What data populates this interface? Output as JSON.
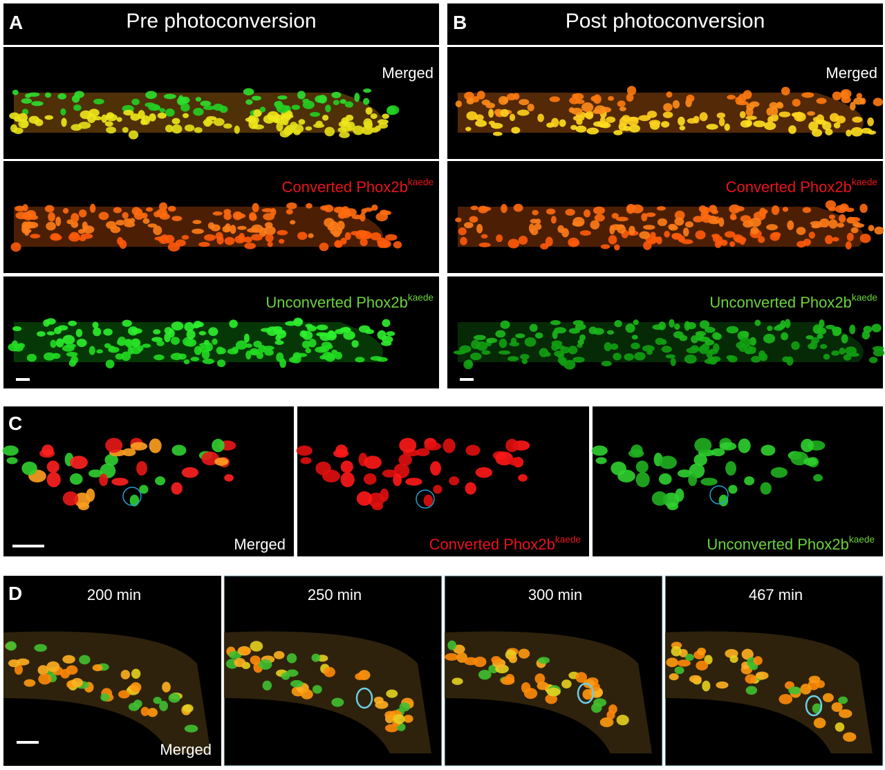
{
  "panel_a": {
    "label": "A",
    "title": "Pre photoconversion",
    "rows": [
      {
        "text": "Merged"
      },
      {
        "text": "Converted Phox2b",
        "sup": "kaede"
      },
      {
        "text": "Unconverted Phox2b",
        "sup": "kaede"
      }
    ]
  },
  "panel_b": {
    "label": "B",
    "title": "Post photoconversion",
    "rows": [
      {
        "text": "Merged"
      },
      {
        "text": "Converted Phox2b",
        "sup": "kaede"
      },
      {
        "text": "Unconverted Phox2b",
        "sup": "kaede"
      }
    ]
  },
  "panel_c": {
    "label": "C",
    "images": [
      {
        "text": "Merged"
      },
      {
        "text": "Converted Phox2b",
        "sup": "kaede"
      },
      {
        "text": "Unconverted Phox2b",
        "sup": "kaede"
      }
    ]
  },
  "panel_d": {
    "label": "D",
    "times": [
      "200 min",
      "250 min",
      "300 min",
      "467 min"
    ],
    "caption": "Merged"
  }
}
